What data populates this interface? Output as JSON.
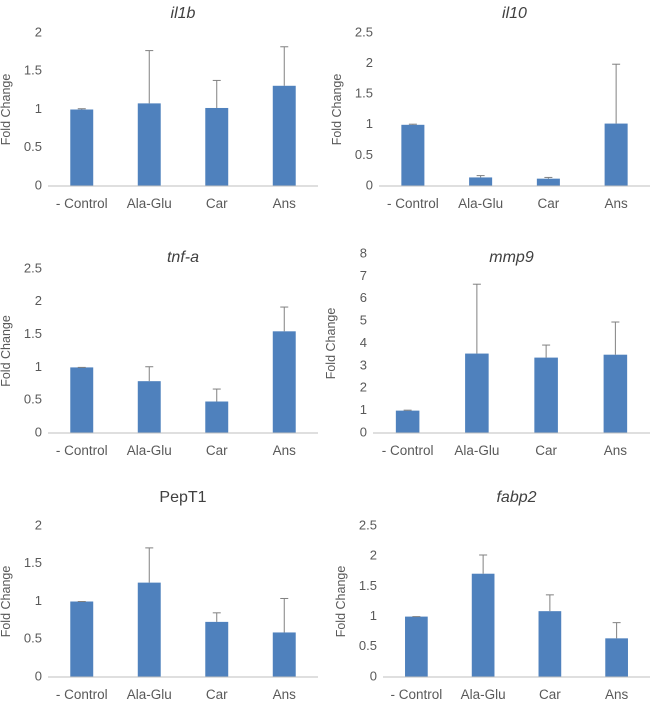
{
  "bar_color": "#4f81bd",
  "axis_color": "#bfbfbf",
  "chart_data": [
    {
      "type": "bar",
      "title": "il1b",
      "title_italic": true,
      "ylabel": "Fold Change",
      "categories": [
        "- Control",
        "Ala-Glu",
        "Car",
        "Ans"
      ],
      "values": [
        1.0,
        1.08,
        1.02,
        1.31
      ],
      "errors": [
        0.01,
        0.69,
        0.36,
        0.51
      ],
      "ylim": [
        0,
        2
      ],
      "yticks": [
        "0",
        "0.5",
        "1",
        "1.5",
        "2"
      ],
      "ytick_values": [
        0,
        0.5,
        1,
        1.5,
        2
      ],
      "grid": false
    },
    {
      "type": "bar",
      "title": "il10",
      "title_italic": true,
      "ylabel": "Fold Change",
      "categories": [
        "- Control",
        "Ala-Glu",
        "Car",
        "Ans"
      ],
      "values": [
        1.0,
        0.14,
        0.12,
        1.02
      ],
      "errors": [
        0.01,
        0.03,
        0.02,
        0.97
      ],
      "ylim": [
        0,
        2.5
      ],
      "yticks": [
        "0",
        "0.5",
        "1",
        "1.5",
        "2",
        "2.5"
      ],
      "ytick_values": [
        0,
        0.5,
        1,
        1.5,
        2,
        2.5
      ],
      "grid": false
    },
    {
      "type": "bar",
      "title": "tnf-a",
      "title_italic": true,
      "ylabel": "Fold Change",
      "categories": [
        "- Control",
        "Ala-Glu",
        "Car",
        "Ans"
      ],
      "values": [
        1.0,
        0.79,
        0.48,
        1.55
      ],
      "errors": [
        0.0,
        0.22,
        0.19,
        0.37
      ],
      "ylim": [
        0,
        2.5
      ],
      "yticks": [
        "0",
        "0.5",
        "1",
        "1.5",
        "2",
        "2.5"
      ],
      "ytick_values": [
        0,
        0.5,
        1,
        1.5,
        2,
        2.5
      ],
      "grid": false
    },
    {
      "type": "bar",
      "title": "mmp9",
      "title_italic": true,
      "ylabel": "Fold Change",
      "categories": [
        "- Control",
        "Ala-Glu",
        "Car",
        "Ans"
      ],
      "values": [
        1.0,
        3.55,
        3.37,
        3.5
      ],
      "errors": [
        0.02,
        3.1,
        0.56,
        1.46
      ],
      "ylim": [
        0,
        8
      ],
      "yticks": [
        "0",
        "1",
        "2",
        "3",
        "4",
        "5",
        "6",
        "7",
        "8"
      ],
      "ytick_values": [
        0,
        1,
        2,
        3,
        4,
        5,
        6,
        7,
        8
      ],
      "grid": false
    },
    {
      "type": "bar",
      "title": "PepT1",
      "title_italic": false,
      "ylabel": "Fold Change",
      "categories": [
        "- Control",
        "Ala-Glu",
        "Car",
        "Ans"
      ],
      "values": [
        1.0,
        1.25,
        0.73,
        0.59
      ],
      "errors": [
        0.0,
        0.46,
        0.12,
        0.45
      ],
      "ylim": [
        0,
        2
      ],
      "yticks": [
        "0",
        "0.5",
        "1",
        "1.5",
        "2"
      ],
      "ytick_values": [
        0,
        0.5,
        1,
        1.5,
        2
      ],
      "grid": false
    },
    {
      "type": "bar",
      "title": "fabp2",
      "title_italic": true,
      "ylabel": "Fold Change",
      "categories": [
        "- Control",
        "Ala-Glu",
        "Car",
        "Ans"
      ],
      "values": [
        1.0,
        1.71,
        1.09,
        0.64
      ],
      "errors": [
        0.0,
        0.31,
        0.27,
        0.26
      ],
      "ylim": [
        0,
        2.5
      ],
      "yticks": [
        "0",
        "0.5",
        "1",
        "1.5",
        "2",
        "2.5"
      ],
      "ytick_values": [
        0,
        0.5,
        1,
        1.5,
        2,
        2.5
      ],
      "grid": false
    }
  ]
}
